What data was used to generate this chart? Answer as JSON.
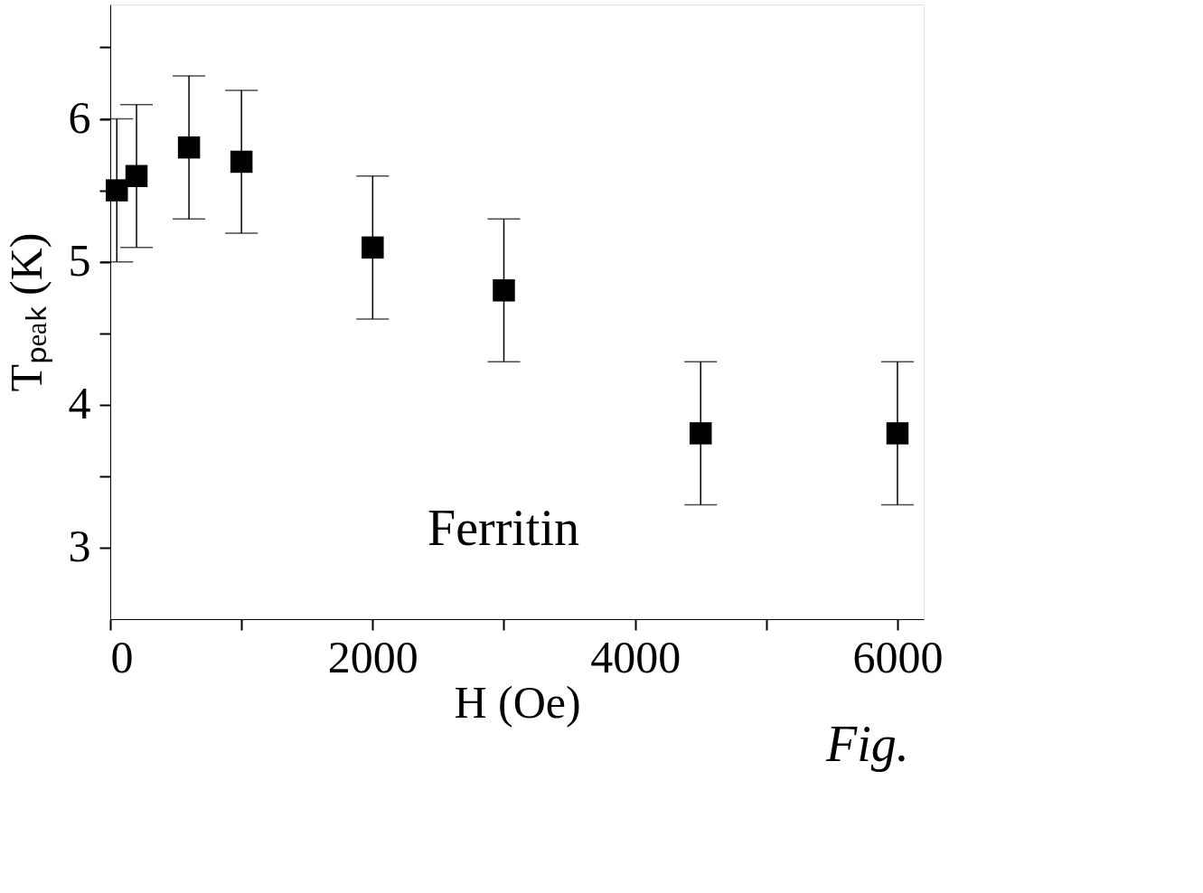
{
  "chart_data": {
    "type": "scatter",
    "xlabel": "H (Oe)",
    "ylabel": "Tₚₑₐₖ (K)",
    "x": [
      50,
      200,
      600,
      1000,
      2000,
      3000,
      4500,
      6000
    ],
    "series": [
      {
        "color": "#000000",
        "values": [
          5.5,
          5.6,
          5.8,
          5.7,
          5.1,
          4.8,
          3.8,
          3.8
        ],
        "errors": [
          0.5,
          0.5,
          0.5,
          0.5,
          0.5,
          0.5,
          0.5,
          0.5
        ]
      }
    ],
    "xlim": [
      0,
      6200
    ],
    "ylim": [
      2.5,
      6.8
    ],
    "xticks": [
      0,
      {
        "value": 1000,
        "label": null
      },
      2000,
      {
        "value": 3000,
        "label": null
      },
      4000,
      {
        "value": 5000,
        "label": null
      },
      6000
    ],
    "yticks": [
      3,
      {
        "value": 3.5,
        "label": null
      },
      4,
      {
        "value": 4.5,
        "label": null
      },
      5,
      {
        "value": 5.5,
        "label": null
      },
      6,
      {
        "value": 6.5,
        "label": null
      }
    ],
    "marker": "square",
    "grid": false,
    "legend": false,
    "annotations": [
      "Ferritin",
      "Fig."
    ]
  }
}
